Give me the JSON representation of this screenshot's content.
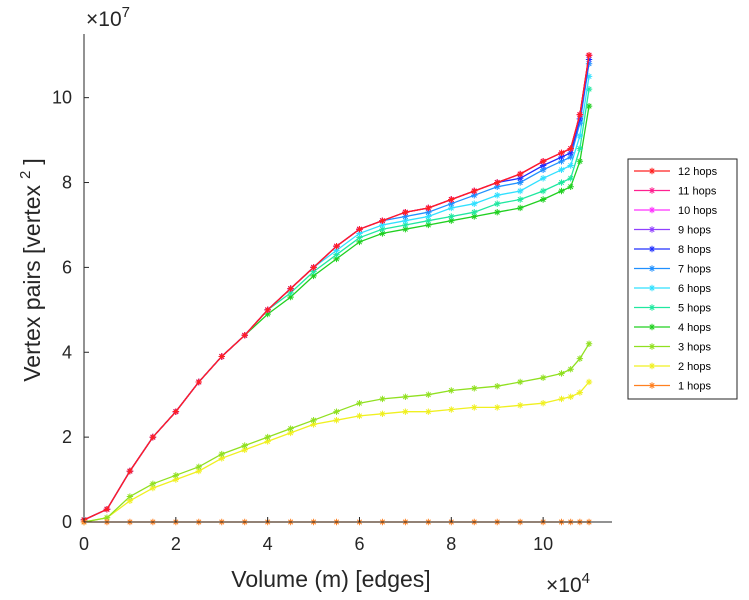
{
  "chart_data": {
    "type": "line",
    "title": "",
    "xlabel": "Volume (m) [edges]",
    "ylabel": "Vertex pairs [vertex",
    "ylabel_superscript": "2",
    "ylabel_close": "]",
    "x_multiplier_text": "×10",
    "x_multiplier_exp": "4",
    "y_multiplier_text": "×10",
    "y_multiplier_exp": "7",
    "xlim": [
      0,
      11.5
    ],
    "ylim": [
      0,
      11.5
    ],
    "x_ticks": [
      0,
      2,
      4,
      6,
      8,
      10
    ],
    "x_tick_labels": [
      "0",
      "2",
      "4",
      "6",
      "8",
      "10"
    ],
    "y_ticks": [
      0,
      2,
      4,
      6,
      8,
      10
    ],
    "y_tick_labels": [
      "0",
      "2",
      "4",
      "6",
      "8",
      "10"
    ],
    "grid": false,
    "legend_position": "right",
    "x": [
      0,
      0.5,
      1,
      1.5,
      2,
      2.5,
      3,
      3.5,
      4,
      4.5,
      5,
      5.5,
      6,
      6.5,
      7,
      7.5,
      8,
      8.5,
      9,
      9.5,
      10,
      10.4,
      10.6,
      10.8,
      11
    ],
    "series": [
      {
        "name": "12 hops",
        "color": "#ff2020",
        "values": [
          0.05,
          0.3,
          1.2,
          2.0,
          2.6,
          3.3,
          3.9,
          4.4,
          5.0,
          5.5,
          6.0,
          6.5,
          6.9,
          7.1,
          7.3,
          7.4,
          7.6,
          7.8,
          8.0,
          8.2,
          8.5,
          8.7,
          8.8,
          9.6,
          11.0
        ]
      },
      {
        "name": "11 hops",
        "color": "#ff2090",
        "values": [
          0.05,
          0.3,
          1.2,
          2.0,
          2.6,
          3.3,
          3.9,
          4.4,
          5.0,
          5.5,
          6.0,
          6.5,
          6.9,
          7.1,
          7.3,
          7.4,
          7.6,
          7.8,
          8.0,
          8.2,
          8.5,
          8.7,
          8.8,
          9.6,
          11.0
        ]
      },
      {
        "name": "10 hops",
        "color": "#ff30ff",
        "values": [
          0.05,
          0.3,
          1.2,
          2.0,
          2.6,
          3.3,
          3.9,
          4.4,
          5.0,
          5.5,
          6.0,
          6.5,
          6.9,
          7.1,
          7.3,
          7.4,
          7.6,
          7.8,
          8.0,
          8.2,
          8.5,
          8.7,
          8.8,
          9.6,
          11.0
        ]
      },
      {
        "name": "9 hops",
        "color": "#9040ff",
        "values": [
          0.05,
          0.3,
          1.2,
          2.0,
          2.6,
          3.3,
          3.9,
          4.4,
          5.0,
          5.5,
          6.0,
          6.5,
          6.9,
          7.1,
          7.3,
          7.4,
          7.6,
          7.8,
          8.0,
          8.2,
          8.5,
          8.7,
          8.8,
          9.6,
          11.0
        ]
      },
      {
        "name": "8 hops",
        "color": "#2030ff",
        "values": [
          0.05,
          0.3,
          1.2,
          2.0,
          2.6,
          3.3,
          3.9,
          4.4,
          5.0,
          5.5,
          6.0,
          6.5,
          6.9,
          7.1,
          7.3,
          7.4,
          7.6,
          7.8,
          8.0,
          8.1,
          8.4,
          8.6,
          8.7,
          9.5,
          10.9
        ]
      },
      {
        "name": "7 hops",
        "color": "#2090ff",
        "values": [
          0.05,
          0.3,
          1.2,
          2.0,
          2.6,
          3.3,
          3.9,
          4.4,
          5.0,
          5.5,
          6.0,
          6.5,
          6.9,
          7.1,
          7.2,
          7.3,
          7.5,
          7.7,
          7.9,
          8.0,
          8.3,
          8.5,
          8.6,
          9.4,
          10.8
        ]
      },
      {
        "name": "6 hops",
        "color": "#30e0ff",
        "values": [
          0.05,
          0.3,
          1.2,
          2.0,
          2.6,
          3.3,
          3.9,
          4.4,
          5.0,
          5.5,
          6.0,
          6.4,
          6.8,
          7.0,
          7.1,
          7.2,
          7.4,
          7.5,
          7.7,
          7.8,
          8.1,
          8.3,
          8.4,
          9.1,
          10.5
        ]
      },
      {
        "name": "5 hops",
        "color": "#20e8a0",
        "values": [
          0.05,
          0.3,
          1.2,
          2.0,
          2.6,
          3.3,
          3.9,
          4.4,
          5.0,
          5.4,
          5.9,
          6.3,
          6.7,
          6.9,
          7.0,
          7.1,
          7.2,
          7.3,
          7.5,
          7.6,
          7.8,
          8.0,
          8.1,
          8.8,
          10.2
        ]
      },
      {
        "name": "4 hops",
        "color": "#20d020",
        "values": [
          0.05,
          0.3,
          1.2,
          2.0,
          2.6,
          3.3,
          3.9,
          4.4,
          4.9,
          5.3,
          5.8,
          6.2,
          6.6,
          6.8,
          6.9,
          7.0,
          7.1,
          7.2,
          7.3,
          7.4,
          7.6,
          7.8,
          7.9,
          8.5,
          9.8
        ]
      },
      {
        "name": "3 hops",
        "color": "#90e020",
        "values": [
          0.0,
          0.1,
          0.6,
          0.9,
          1.1,
          1.3,
          1.6,
          1.8,
          2.0,
          2.2,
          2.4,
          2.6,
          2.8,
          2.9,
          2.95,
          3.0,
          3.1,
          3.15,
          3.2,
          3.3,
          3.4,
          3.5,
          3.6,
          3.85,
          4.2
        ]
      },
      {
        "name": "2 hops",
        "color": "#f0f020",
        "values": [
          0.0,
          0.1,
          0.5,
          0.8,
          1.0,
          1.2,
          1.5,
          1.7,
          1.9,
          2.1,
          2.3,
          2.4,
          2.5,
          2.55,
          2.6,
          2.6,
          2.65,
          2.7,
          2.7,
          2.75,
          2.8,
          2.9,
          2.95,
          3.05,
          3.3
        ]
      },
      {
        "name": "1 hops",
        "color": "#ff8020",
        "values": [
          0,
          0,
          0,
          0,
          0,
          0,
          0,
          0,
          0,
          0,
          0,
          0,
          0,
          0,
          0,
          0,
          0,
          0,
          0,
          0,
          0,
          0,
          0,
          0,
          0
        ]
      }
    ]
  }
}
